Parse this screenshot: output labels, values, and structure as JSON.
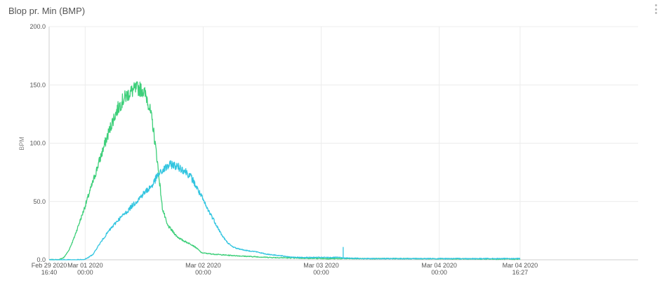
{
  "panel": {
    "title": "Blop pr. Min (BMP)"
  },
  "chart_data": {
    "type": "line",
    "title": "Blop pr. Min (BMP)",
    "ylabel": "BPM",
    "xlabel": "",
    "ylim": [
      0,
      200
    ],
    "y_ticks": [
      "0.0",
      "50.0",
      "100.0",
      "150.0",
      "200.0"
    ],
    "x_range_hours": [
      0,
      119.78
    ],
    "x_ticks": [
      {
        "hour": 0,
        "line1": "Feb 29 2020",
        "line2": "16:40"
      },
      {
        "hour": 7.33,
        "line1": "Mar 01 2020",
        "line2": "00:00"
      },
      {
        "hour": 31.33,
        "line1": "Mar 02 2020",
        "line2": "00:00"
      },
      {
        "hour": 55.33,
        "line1": "Mar 03 2020",
        "line2": "00:00"
      },
      {
        "hour": 79.33,
        "line1": "Mar 04 2020",
        "line2": "00:00"
      },
      {
        "hour": 95.78,
        "line1": "Mar 04 2020",
        "line2": "16:27"
      }
    ],
    "grid": true,
    "series": [
      {
        "color": "#3ecf7a",
        "points": [
          [
            0,
            0
          ],
          [
            2,
            0
          ],
          [
            3,
            2
          ],
          [
            4,
            8
          ],
          [
            5,
            18
          ],
          [
            6,
            30
          ],
          [
            7,
            42
          ],
          [
            8,
            55
          ],
          [
            9,
            68
          ],
          [
            10,
            82
          ],
          [
            11,
            95
          ],
          [
            12,
            108
          ],
          [
            13,
            120
          ],
          [
            14,
            130
          ],
          [
            15,
            137
          ],
          [
            16,
            142
          ],
          [
            17,
            145
          ],
          [
            18,
            147
          ],
          [
            19,
            146
          ],
          [
            20,
            138
          ],
          [
            21,
            118
          ],
          [
            22,
            85
          ],
          [
            23,
            45
          ],
          [
            24,
            30
          ],
          [
            25,
            25
          ],
          [
            26,
            20
          ],
          [
            27,
            17
          ],
          [
            28,
            15
          ],
          [
            29,
            13
          ],
          [
            30,
            10
          ],
          [
            31,
            6
          ],
          [
            33,
            5
          ],
          [
            36,
            4
          ],
          [
            40,
            3
          ],
          [
            45,
            2
          ],
          [
            50,
            1.5
          ],
          [
            56,
            1
          ],
          [
            70,
            1
          ],
          [
            95.78,
            0.5
          ]
        ]
      },
      {
        "color": "#33c5e0",
        "points": [
          [
            0,
            0
          ],
          [
            7,
            0
          ],
          [
            8,
            2
          ],
          [
            9,
            5
          ],
          [
            10,
            12
          ],
          [
            11,
            18
          ],
          [
            12,
            24
          ],
          [
            13,
            29
          ],
          [
            14,
            34
          ],
          [
            15,
            38
          ],
          [
            16,
            42
          ],
          [
            17,
            47
          ],
          [
            18,
            51
          ],
          [
            19,
            56
          ],
          [
            20,
            60
          ],
          [
            21,
            64
          ],
          [
            22,
            72
          ],
          [
            23,
            76
          ],
          [
            24,
            80
          ],
          [
            25,
            82
          ],
          [
            26,
            80
          ],
          [
            27,
            78
          ],
          [
            28,
            75
          ],
          [
            29,
            70
          ],
          [
            30,
            62
          ],
          [
            31,
            54
          ],
          [
            32,
            45
          ],
          [
            33,
            38
          ],
          [
            34,
            30
          ],
          [
            35,
            22
          ],
          [
            36,
            16
          ],
          [
            37,
            12
          ],
          [
            38,
            10
          ],
          [
            40,
            8
          ],
          [
            42,
            7
          ],
          [
            44,
            5
          ],
          [
            46,
            4
          ],
          [
            48,
            3
          ],
          [
            50,
            2
          ],
          [
            55,
            2
          ],
          [
            59,
            2
          ],
          [
            60,
            1.5
          ],
          [
            65,
            1
          ],
          [
            80,
            1
          ],
          [
            95.78,
            1
          ]
        ]
      }
    ],
    "annotations": [
      {
        "series": 1,
        "hour": 59.8,
        "value": 11
      }
    ]
  }
}
